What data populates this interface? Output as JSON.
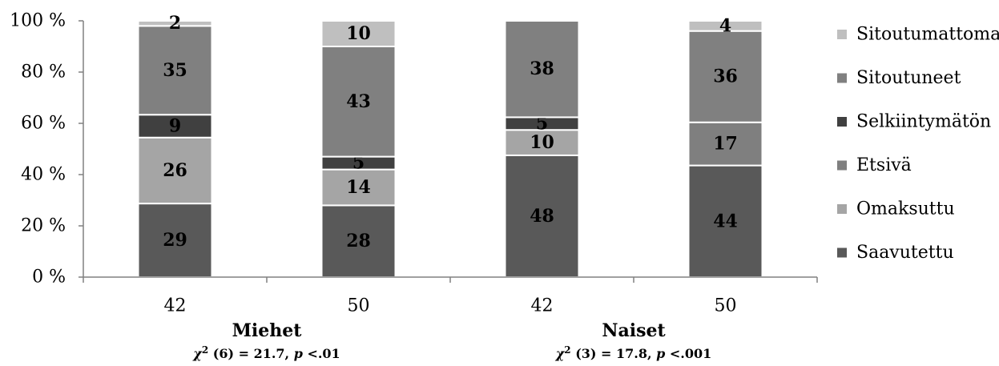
{
  "chart_data": {
    "type": "bar",
    "stacked": true,
    "percent": true,
    "ylim": [
      0,
      100
    ],
    "ytick_labels": [
      "0 %",
      "20 %",
      "40 %",
      "60 %",
      "80 %",
      "100 %"
    ],
    "ytick_values": [
      0,
      20,
      40,
      60,
      80,
      100
    ],
    "categories": [
      "42",
      "50",
      "42",
      "50"
    ],
    "groups": [
      {
        "label": "Miehet",
        "stat_prefix": "χ",
        "stat_sup": "2",
        "stat_mid": " (6) = 21.7, ",
        "stat_p": "p",
        "stat_end": " <.01"
      },
      {
        "label": "Naiset",
        "stat_prefix": "χ",
        "stat_sup": "2",
        "stat_mid": " (3) = 17.8, ",
        "stat_p": "p",
        "stat_end": " <.001"
      }
    ],
    "series": [
      {
        "name": "Saavutettu",
        "color": "#595959",
        "values": [
          29,
          28,
          48,
          44
        ]
      },
      {
        "name": "Omaksuttu",
        "color": "#a5a5a5",
        "values": [
          26,
          14,
          10,
          0
        ]
      },
      {
        "name": "Etsivä",
        "color": "#7f7f7f",
        "values": [
          0,
          0,
          0,
          17
        ]
      },
      {
        "name": "Selkiintymätön",
        "color": "#404040",
        "values": [
          9,
          5,
          5,
          0
        ]
      },
      {
        "name": "Sitoutuneet",
        "color": "#808080",
        "values": [
          35,
          43,
          38,
          36
        ]
      },
      {
        "name": "Sitoutumattomat",
        "color": "#bfbfbf",
        "values": [
          2,
          10,
          0,
          4
        ]
      }
    ],
    "legend_position": "right",
    "legend_order": [
      "Sitoutumattomat",
      "Sitoutuneet",
      "Selkiintymätön",
      "Etsivä",
      "Omaksuttu",
      "Saavutettu"
    ],
    "grid": false
  }
}
